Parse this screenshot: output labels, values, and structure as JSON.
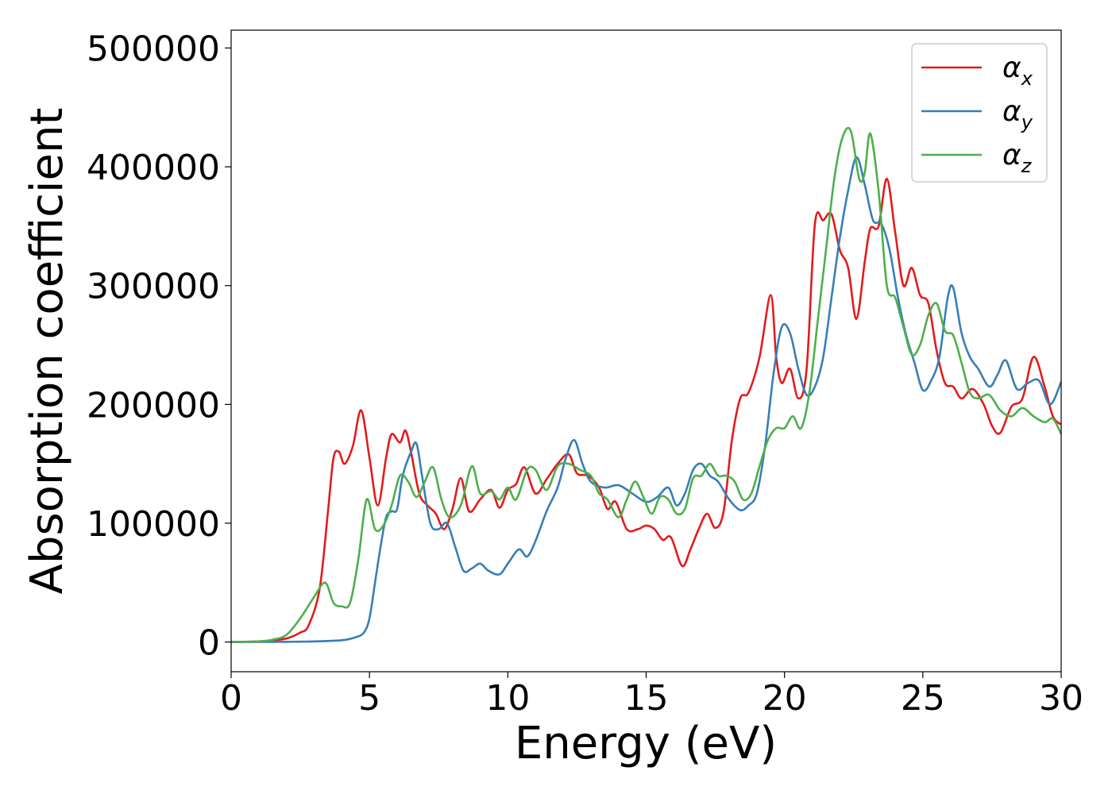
{
  "chart_data": {
    "type": "line",
    "xlabel": "Energy (eV)",
    "ylabel": "Absorption coefficient",
    "xlim": [
      0,
      30
    ],
    "ylim": [
      -25000,
      515000
    ],
    "xticks": [
      0,
      5,
      10,
      15,
      20,
      25,
      30
    ],
    "xtick_labels": [
      "0",
      "5",
      "10",
      "15",
      "20",
      "25",
      "30"
    ],
    "yticks": [
      0,
      100000,
      200000,
      300000,
      400000,
      500000
    ],
    "ytick_labels": [
      "0",
      "100000",
      "200000",
      "300000",
      "400000",
      "500000"
    ],
    "grid": false,
    "legend_position": "top-right",
    "series": [
      {
        "name": "α",
        "subscript": "x",
        "color": "#e41a1c",
        "x": [
          0,
          1,
          1.5,
          2,
          2.5,
          2.8,
          3.2,
          3.5,
          3.7,
          3.9,
          4.1,
          4.4,
          4.7,
          5.0,
          5.3,
          5.6,
          5.8,
          6.1,
          6.3,
          6.5,
          6.8,
          7.1,
          7.4,
          7.7,
          8.0,
          8.3,
          8.6,
          9.0,
          9.4,
          9.7,
          10.0,
          10.3,
          10.6,
          11.0,
          11.4,
          11.8,
          12.2,
          12.5,
          12.9,
          13.3,
          13.6,
          13.9,
          14.3,
          14.7,
          15.0,
          15.3,
          15.6,
          15.9,
          16.3,
          16.6,
          16.9,
          17.2,
          17.5,
          17.8,
          18.1,
          18.4,
          18.7,
          19.1,
          19.5,
          19.7,
          19.9,
          20.2,
          20.5,
          20.8,
          21.1,
          21.4,
          21.7,
          22.0,
          22.3,
          22.6,
          22.9,
          23.1,
          23.4,
          23.7,
          24.0,
          24.3,
          24.6,
          24.9,
          25.2,
          25.5,
          25.8,
          26.1,
          26.4,
          26.8,
          27.2,
          27.5,
          27.8,
          28.2,
          28.6,
          29.0,
          29.4,
          29.7,
          30.0
        ],
        "values": [
          0,
          500,
          1500,
          3000,
          8000,
          14000,
          45000,
          110000,
          155000,
          160000,
          150000,
          165000,
          195000,
          155000,
          115000,
          155000,
          175000,
          168000,
          178000,
          160000,
          125000,
          115000,
          108000,
          95000,
          112000,
          138000,
          110000,
          120000,
          128000,
          113000,
          128000,
          133000,
          147000,
          125000,
          137000,
          150000,
          158000,
          142000,
          140000,
          130000,
          112000,
          118000,
          95000,
          95000,
          98000,
          95000,
          86000,
          88000,
          64000,
          78000,
          95000,
          108000,
          96000,
          110000,
          170000,
          205000,
          210000,
          240000,
          292000,
          240000,
          218000,
          230000,
          205000,
          230000,
          352000,
          355000,
          360000,
          330000,
          315000,
          272000,
          320000,
          348000,
          350000,
          390000,
          345000,
          300000,
          315000,
          292000,
          285000,
          245000,
          218000,
          215000,
          205000,
          213000,
          200000,
          182000,
          176000,
          198000,
          205000,
          240000,
          215000,
          190000,
          183000
        ]
      },
      {
        "name": "α",
        "subscript": "y",
        "color": "#377eb8",
        "x": [
          0,
          2,
          3,
          4,
          4.5,
          4.8,
          5.0,
          5.2,
          5.4,
          5.6,
          5.8,
          6.0,
          6.2,
          6.5,
          6.7,
          6.9,
          7.2,
          7.5,
          7.8,
          8.1,
          8.4,
          8.7,
          9.0,
          9.3,
          9.7,
          10.0,
          10.4,
          10.7,
          11.0,
          11.4,
          11.8,
          12.1,
          12.4,
          12.7,
          13.0,
          13.5,
          14.0,
          14.5,
          15.0,
          15.4,
          15.8,
          16.1,
          16.4,
          16.7,
          17.0,
          17.3,
          17.6,
          18.0,
          18.4,
          18.7,
          19.0,
          19.3,
          19.6,
          19.9,
          20.2,
          20.5,
          20.8,
          21.1,
          21.4,
          21.7,
          22.0,
          22.3,
          22.6,
          22.9,
          23.2,
          23.5,
          23.8,
          24.1,
          24.4,
          24.7,
          25.0,
          25.3,
          25.6,
          25.9,
          26.1,
          26.4,
          26.7,
          27.0,
          27.4,
          27.7,
          28.0,
          28.4,
          28.8,
          29.2,
          29.6,
          30.0
        ],
        "values": [
          0,
          200,
          500,
          1500,
          4000,
          8000,
          20000,
          50000,
          80000,
          105000,
          110000,
          112000,
          140000,
          160000,
          167000,
          140000,
          100000,
          95000,
          100000,
          80000,
          60000,
          62000,
          66000,
          60000,
          57000,
          66000,
          78000,
          72000,
          85000,
          110000,
          130000,
          155000,
          170000,
          150000,
          135000,
          130000,
          132000,
          125000,
          118000,
          122000,
          130000,
          115000,
          125000,
          145000,
          150000,
          140000,
          135000,
          120000,
          111000,
          115000,
          125000,
          165000,
          225000,
          265000,
          260000,
          230000,
          208000,
          215000,
          240000,
          290000,
          340000,
          380000,
          408000,
          385000,
          355000,
          352000,
          330000,
          290000,
          258000,
          235000,
          212000,
          220000,
          240000,
          290000,
          298000,
          260000,
          240000,
          230000,
          215000,
          225000,
          237000,
          213000,
          218000,
          220000,
          200000,
          219000
        ]
      },
      {
        "name": "α",
        "subscript": "z",
        "color": "#4daf4a",
        "x": [
          0,
          1,
          1.5,
          2,
          2.5,
          3.0,
          3.4,
          3.7,
          4.0,
          4.3,
          4.6,
          4.9,
          5.2,
          5.5,
          5.8,
          6.1,
          6.4,
          6.7,
          7.0,
          7.3,
          7.6,
          7.9,
          8.3,
          8.7,
          9.0,
          9.4,
          9.7,
          10.0,
          10.3,
          10.7,
          11.0,
          11.4,
          11.8,
          12.2,
          12.6,
          13.0,
          13.3,
          13.6,
          14.0,
          14.3,
          14.6,
          14.9,
          15.2,
          15.5,
          15.8,
          16.1,
          16.4,
          16.7,
          17.0,
          17.3,
          17.6,
          17.9,
          18.2,
          18.5,
          18.8,
          19.1,
          19.4,
          19.7,
          20.0,
          20.3,
          20.6,
          20.9,
          21.2,
          21.5,
          21.8,
          22.1,
          22.4,
          22.7,
          22.9,
          23.1,
          23.4,
          23.7,
          24.0,
          24.3,
          24.6,
          24.9,
          25.2,
          25.5,
          25.8,
          26.1,
          26.4,
          26.7,
          27.0,
          27.4,
          27.8,
          28.2,
          28.6,
          29.0,
          29.4,
          29.7,
          30.0
        ],
        "values": [
          0,
          500,
          2000,
          6000,
          20000,
          38000,
          50000,
          33000,
          30000,
          33000,
          70000,
          120000,
          95000,
          98000,
          115000,
          140000,
          135000,
          122000,
          135000,
          147000,
          120000,
          105000,
          115000,
          148000,
          125000,
          127000,
          120000,
          130000,
          120000,
          145000,
          145000,
          128000,
          148000,
          150000,
          145000,
          140000,
          125000,
          120000,
          105000,
          120000,
          135000,
          122000,
          108000,
          122000,
          120000,
          108000,
          112000,
          138000,
          140000,
          150000,
          140000,
          140000,
          135000,
          120000,
          125000,
          148000,
          170000,
          180000,
          180000,
          190000,
          180000,
          210000,
          270000,
          330000,
          390000,
          425000,
          430000,
          390000,
          395000,
          428000,
          380000,
          300000,
          290000,
          265000,
          242000,
          250000,
          275000,
          285000,
          262000,
          258000,
          235000,
          210000,
          205000,
          208000,
          195000,
          190000,
          197000,
          190000,
          185000,
          188000,
          175000
        ]
      }
    ]
  }
}
